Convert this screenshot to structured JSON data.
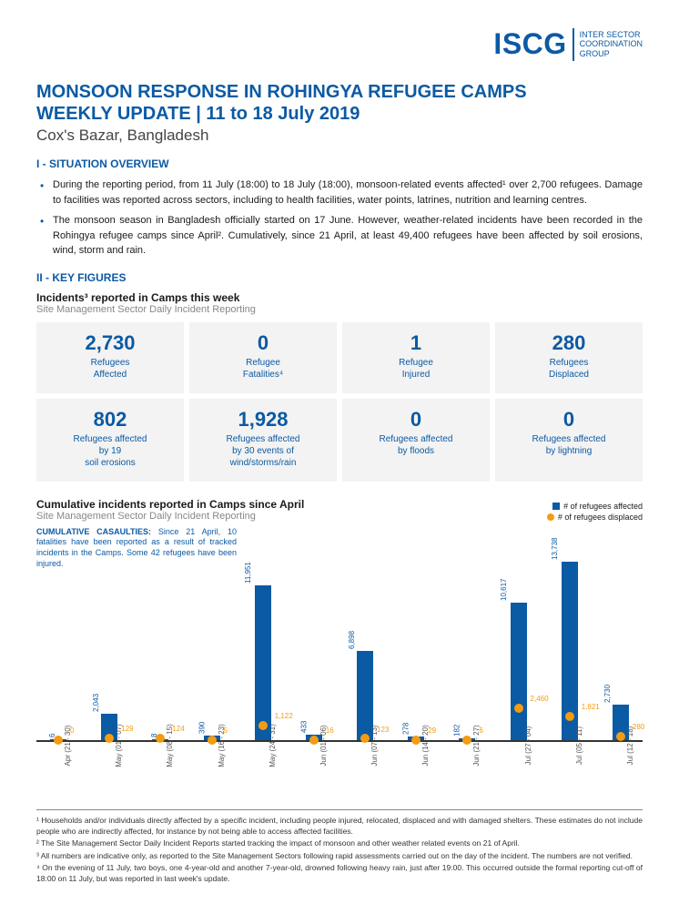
{
  "logo": {
    "main": "ISCG",
    "sub_lines": [
      "INTER SECTOR",
      "COORDINATION",
      "GROUP"
    ]
  },
  "title_line1": "MONSOON RESPONSE IN ROHINGYA REFUGEE CAMPS",
  "title_line2": "WEEKLY UPDATE | 11 to 18 July 2019",
  "subtitle": "Cox's Bazar, Bangladesh",
  "sec1_heading": "I - SITUATION OVERVIEW",
  "bullets": [
    "During the reporting period, from 11 July (18:00) to 18 July (18:00), monsoon-related events affected¹ over 2,700 refugees. Damage to facilities was reported across sectors, including to health facilities, water points, latrines, nutrition and learning centres.",
    "The monsoon season in Bangladesh officially started on 17 June. However, weather-related incidents have been recorded in the Rohingya refugee camps since April². Cumulatively, since 21 April, at least 49,400 refugees have been affected by soil erosions, wind, storm and rain."
  ],
  "sec2_heading": "II - KEY FIGURES",
  "incidents_title": "Incidents³ reported in Camps this week",
  "incidents_sub": "Site Management Sector Daily Incident Reporting",
  "kpis": [
    {
      "value": "2,730",
      "label": "Refugees\nAffected"
    },
    {
      "value": "0",
      "label": "Refugee\nFatalities⁴"
    },
    {
      "value": "1",
      "label": "Refugee\nInjured"
    },
    {
      "value": "280",
      "label": "Refugees\nDisplaced"
    },
    {
      "value": "802",
      "label": "Refugees affected\nby 19\nsoil erosions"
    },
    {
      "value": "1,928",
      "label": "Refugees affected\nby 30 events of\nwind/storms/rain"
    },
    {
      "value": "0",
      "label": "Refugees affected\nby floods"
    },
    {
      "value": "0",
      "label": "Refugees affected\nby lightning"
    }
  ],
  "cumulative_title": "Cumulative incidents reported in Camps since April",
  "cumulative_sub": "Site Management Sector Daily Incident Reporting",
  "legend": {
    "affected": "# of refugees affected",
    "displaced": "# of refugees displaced"
  },
  "casualty_note_lead": "CUMULATIVE CASAULTIES:",
  "casualty_note_body": " Since 21 April, 10 fatalities have been reported as a result of tracked incidents in the Camps. Some 42 refugees have been injured.",
  "chart": {
    "max_value": 14000,
    "bar_color": "#0b5aa4",
    "dot_color": "#f39c12",
    "series": [
      {
        "period": "Apr (21 - 30)",
        "affected": 6,
        "displaced": 0
      },
      {
        "period": "May (01 - 07)",
        "affected": 2043,
        "displaced": 129
      },
      {
        "period": "May (08 - 15)",
        "affected": 8,
        "displaced": 124
      },
      {
        "period": "May (16 - 23)",
        "affected": 390,
        "displaced": 5
      },
      {
        "period": "May (24 - 31)",
        "affected": 11951,
        "displaced": 1122
      },
      {
        "period": "Jun (01 - 06)",
        "affected": 433,
        "displaced": 16
      },
      {
        "period": "Jun (07 - 13)",
        "affected": 6898,
        "displaced": 123
      },
      {
        "period": "Jun (14 - 20)",
        "affected": 278,
        "displaced": 29
      },
      {
        "period": "Jun (21 - 27)",
        "affected": 182,
        "displaced": 6
      },
      {
        "period": "Jul (27 - 04)",
        "affected": 10617,
        "displaced": 2460
      },
      {
        "period": "Jul (05 - 11)",
        "affected": 13738,
        "displaced": 1821
      },
      {
        "period": "Jul (12 - 18)",
        "affected": 2730,
        "displaced": 280
      }
    ]
  },
  "footnotes": [
    "¹ Households and/or individuals directly affected by a specific incident, including people injured, relocated, displaced and with damaged shelters. These estimates do not include people who are indirectly affected, for instance by not being able to access affected facilities.",
    "² The Site Management Sector Daily Incident Reports started tracking the impact of monsoon and other weather related events on 21 of April.",
    "³ All numbers are indicative only, as reported to the Site Management Sectors following rapid assessments carried out on the day of the incident. The numbers are not verified.",
    "⁴ On the evening of 11 July, two boys, one 4-year-old and another 7-year-old, drowned following heavy rain, just after 19:00. This occurred outside the formal reporting cut-off of 18:00 on 11 July, but was reported in last week's update."
  ]
}
